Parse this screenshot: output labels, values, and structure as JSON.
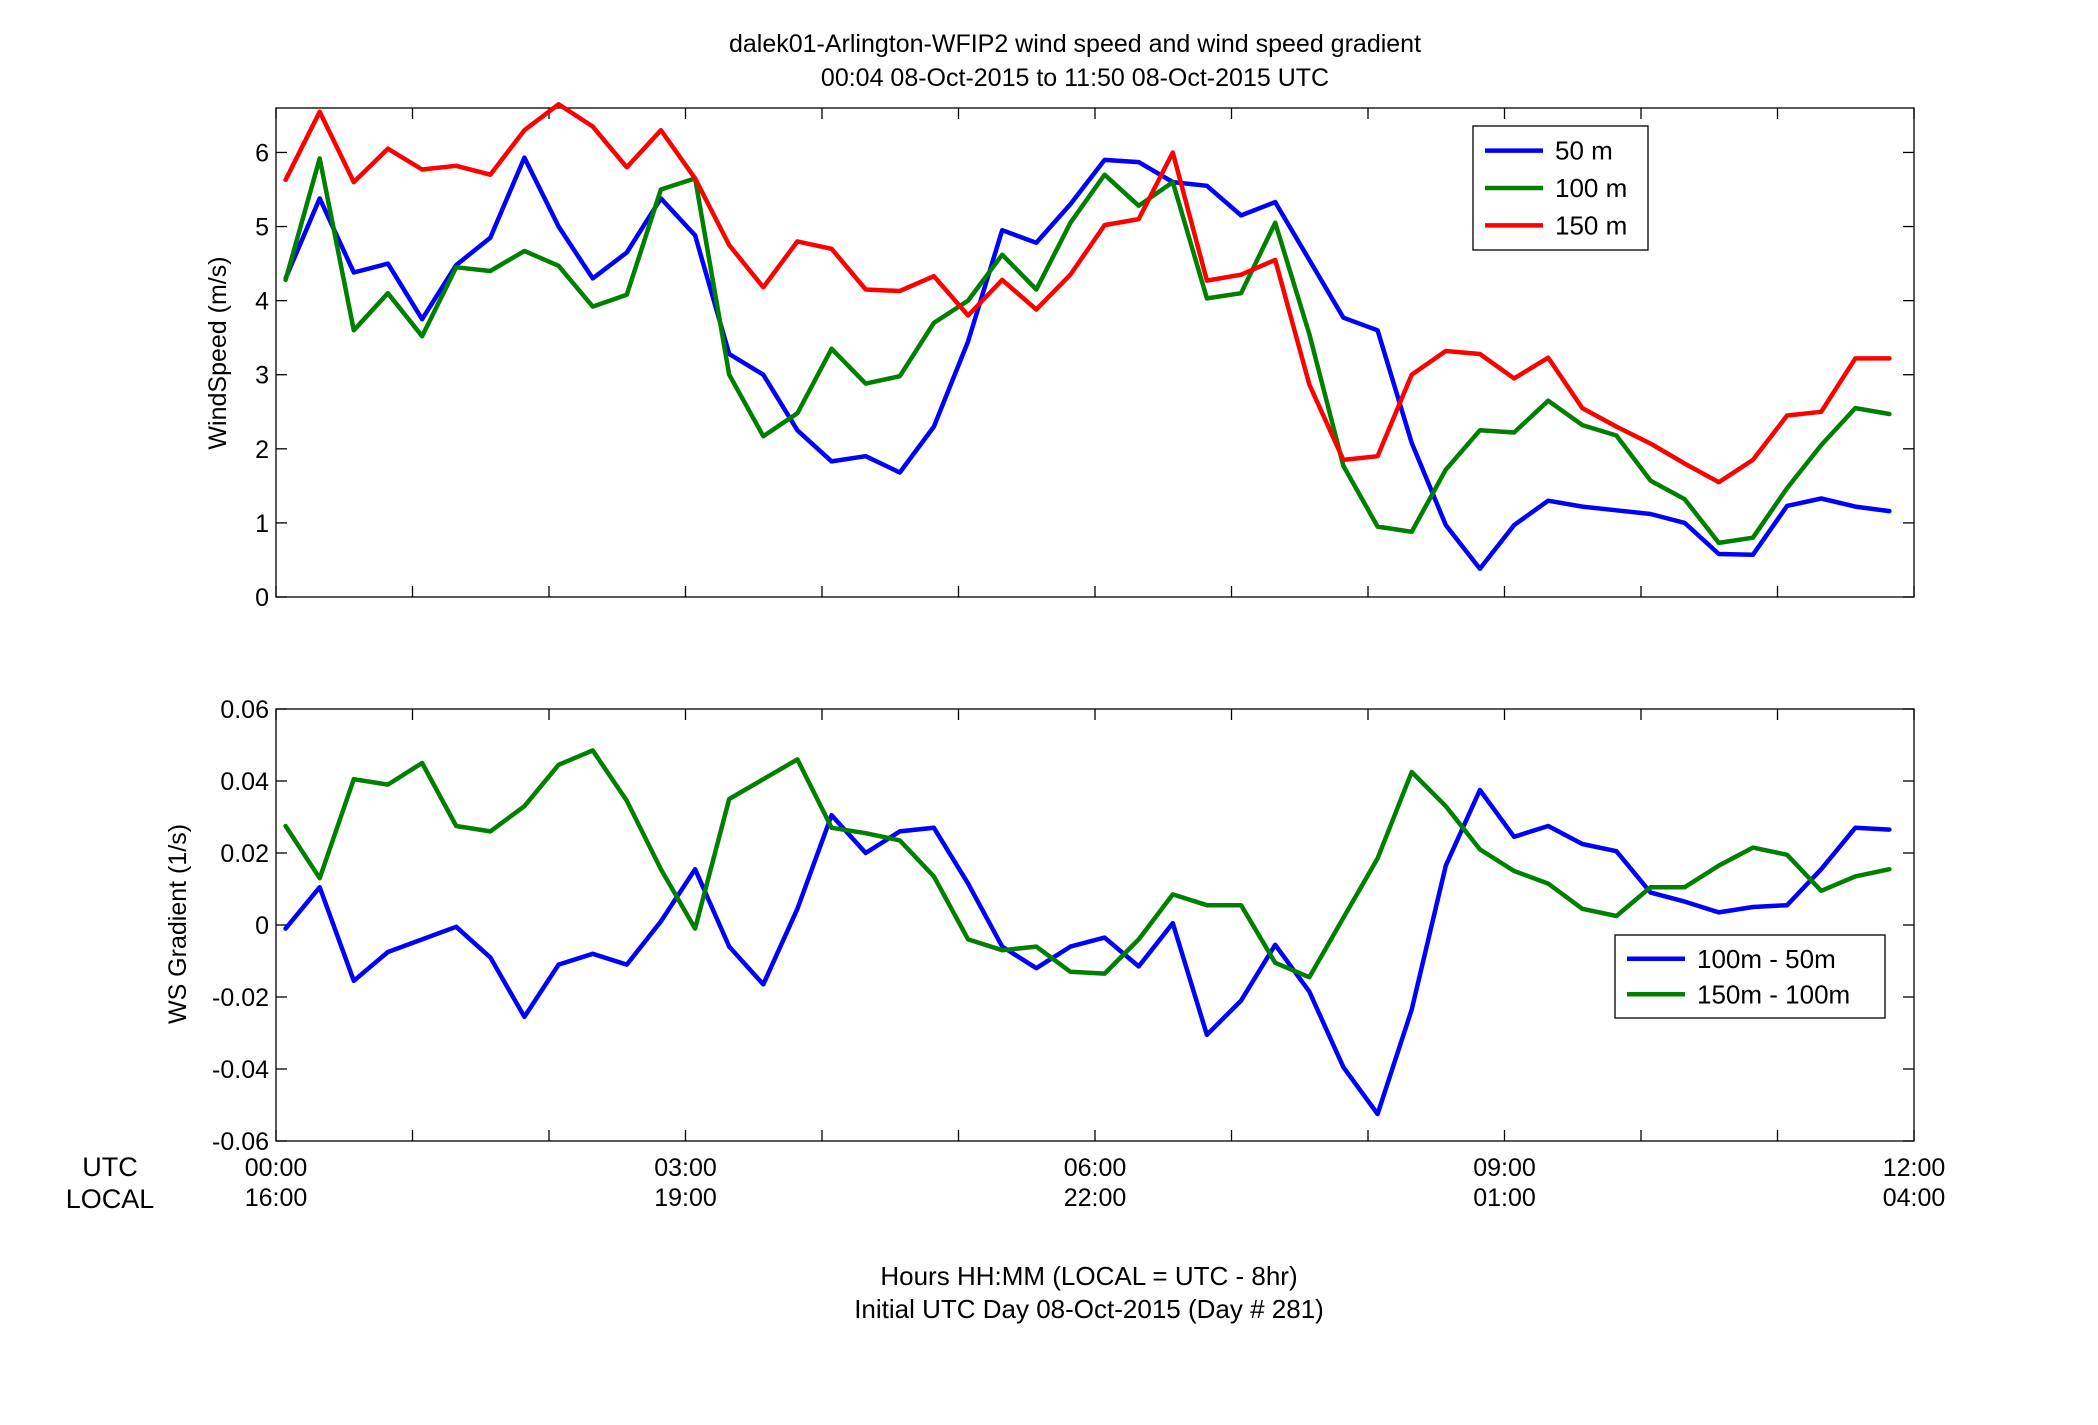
{
  "title_line1": "dalek01-Arlington-WFIP2  wind speed and wind speed gradient",
  "title_line2": "00:04 08-Oct-2015 to 11:50 08-Oct-2015  UTC",
  "footer_line1": "Hours HH:MM  (LOCAL = UTC - 8hr)",
  "footer_line2": "Initial UTC Day 08-Oct-2015 (Day # 281)",
  "x_row_labels": [
    "UTC",
    "LOCAL"
  ],
  "x_ticks": [
    {
      "utc": "00:00",
      "local": "16:00",
      "hour": 0
    },
    {
      "utc": "03:00",
      "local": "19:00",
      "hour": 3
    },
    {
      "utc": "06:00",
      "local": "22:00",
      "hour": 6
    },
    {
      "utc": "09:00",
      "local": "01:00",
      "hour": 9
    },
    {
      "utc": "12:00",
      "local": "04:00",
      "hour": 12
    }
  ],
  "colors": {
    "blue": "#0000ff",
    "green": "#008000",
    "red": "#ff0000"
  },
  "chart_data": [
    {
      "type": "line",
      "ylabel": "WindSpeed (m/s)",
      "ylim": [
        0,
        6.6
      ],
      "yticks": [
        0,
        1,
        2,
        3,
        4,
        5,
        6
      ],
      "xlim": [
        0,
        12
      ],
      "legend_position": "top-right",
      "x": [
        0.07,
        0.32,
        0.57,
        0.82,
        1.07,
        1.32,
        1.57,
        1.82,
        2.07,
        2.32,
        2.57,
        2.82,
        3.07,
        3.32,
        3.57,
        3.82,
        4.07,
        4.32,
        4.57,
        4.82,
        5.07,
        5.32,
        5.57,
        5.82,
        6.07,
        6.32,
        6.57,
        6.82,
        7.07,
        7.32,
        7.57,
        7.82,
        8.07,
        8.32,
        8.57,
        8.82,
        9.07,
        9.32,
        9.57,
        9.82,
        10.07,
        10.32,
        10.57,
        10.82,
        11.07,
        11.32,
        11.57,
        11.82
      ],
      "series": [
        {
          "name": "50 m",
          "color": "#0000ff",
          "values": [
            4.3,
            5.38,
            4.38,
            4.5,
            3.75,
            4.48,
            4.85,
            5.93,
            5.0,
            4.3,
            4.65,
            5.38,
            4.88,
            3.28,
            3.0,
            2.25,
            1.83,
            1.9,
            1.68,
            2.3,
            3.45,
            4.95,
            4.78,
            5.3,
            5.9,
            5.87,
            5.6,
            5.55,
            5.15,
            5.33,
            4.55,
            3.77,
            3.6,
            2.08,
            0.97,
            0.38,
            0.97,
            1.3,
            1.22,
            1.17,
            1.12,
            1.0,
            0.58,
            0.57,
            1.23,
            1.33,
            1.22,
            1.16
          ]
        },
        {
          "name": "100 m",
          "color": "#008000",
          "values": [
            4.28,
            5.92,
            3.6,
            4.1,
            3.52,
            4.45,
            4.4,
            4.67,
            4.47,
            3.92,
            4.08,
            5.5,
            5.65,
            3.0,
            2.17,
            2.48,
            3.35,
            2.88,
            2.98,
            3.7,
            4.0,
            4.62,
            4.15,
            5.05,
            5.7,
            5.28,
            5.6,
            4.03,
            4.1,
            5.05,
            3.55,
            1.77,
            0.95,
            0.88,
            1.72,
            2.25,
            2.22,
            2.65,
            2.32,
            2.18,
            1.57,
            1.32,
            0.73,
            0.8,
            1.47,
            2.05,
            2.55,
            2.47
          ]
        },
        {
          "name": "150 m",
          "color": "#ff0000",
          "values": [
            5.63,
            6.55,
            5.6,
            6.05,
            5.77,
            5.82,
            5.7,
            6.3,
            6.65,
            6.35,
            5.8,
            6.3,
            5.65,
            4.75,
            4.18,
            4.8,
            4.7,
            4.15,
            4.13,
            4.33,
            3.8,
            4.28,
            3.88,
            4.35,
            5.02,
            5.1,
            6.0,
            4.27,
            4.35,
            4.55,
            2.87,
            1.85,
            1.9,
            3.0,
            3.32,
            3.28,
            2.95,
            3.23,
            2.55,
            2.3,
            2.07,
            1.8,
            1.55,
            1.85,
            2.45,
            2.5,
            3.22,
            3.22
          ]
        }
      ]
    },
    {
      "type": "line",
      "ylabel": "WS Gradient (1/s)",
      "ylim": [
        -0.06,
        0.06
      ],
      "yticks": [
        -0.06,
        -0.04,
        -0.02,
        0,
        0.02,
        0.04,
        0.06
      ],
      "ytick_labels": [
        "-0.06",
        "-0.04",
        "-0.02",
        "0",
        "0.02",
        "0.04",
        "0.06"
      ],
      "xlim": [
        0,
        12
      ],
      "legend_position": "right",
      "x": [
        0.07,
        0.32,
        0.57,
        0.82,
        1.07,
        1.32,
        1.57,
        1.82,
        2.07,
        2.32,
        2.57,
        2.82,
        3.07,
        3.32,
        3.57,
        3.82,
        4.07,
        4.32,
        4.57,
        4.82,
        5.07,
        5.32,
        5.57,
        5.82,
        6.07,
        6.32,
        6.57,
        6.82,
        7.07,
        7.32,
        7.57,
        7.82,
        8.07,
        8.32,
        8.57,
        8.82,
        9.07,
        9.32,
        9.57,
        9.82,
        10.07,
        10.32,
        10.57,
        10.82,
        11.07,
        11.32,
        11.57,
        11.82
      ],
      "series": [
        {
          "name": "100m - 50m",
          "color": "#0000ff",
          "values": [
            -0.001,
            0.0105,
            -0.0155,
            -0.0075,
            -0.004,
            -0.0005,
            -0.009,
            -0.0255,
            -0.011,
            -0.008,
            -0.011,
            0.001,
            0.0155,
            -0.006,
            -0.0165,
            0.0045,
            0.0305,
            0.02,
            0.026,
            0.027,
            0.0115,
            -0.006,
            -0.012,
            -0.006,
            -0.0035,
            -0.0115,
            0.0005,
            -0.0305,
            -0.021,
            -0.0055,
            -0.0185,
            -0.0395,
            -0.0525,
            -0.0235,
            0.0165,
            0.0375,
            0.0245,
            0.0275,
            0.0225,
            0.0205,
            0.009,
            0.0065,
            0.0035,
            0.005,
            0.0055,
            0.0155,
            0.027,
            0.0265
          ]
        },
        {
          "name": "150m - 100m",
          "color": "#008000",
          "values": [
            0.0275,
            0.013,
            0.0405,
            0.039,
            0.045,
            0.0275,
            0.026,
            0.033,
            0.0445,
            0.0485,
            0.0345,
            0.0155,
            -0.001,
            0.035,
            0.0405,
            0.046,
            0.027,
            0.0255,
            0.0235,
            0.0135,
            -0.004,
            -0.007,
            -0.006,
            -0.013,
            -0.0135,
            -0.004,
            0.0085,
            0.0055,
            0.0055,
            -0.0105,
            -0.0145,
            0.002,
            0.0185,
            0.0425,
            0.033,
            0.021,
            0.015,
            0.0115,
            0.0045,
            0.0025,
            0.0105,
            0.0105,
            0.0165,
            0.0215,
            0.0195,
            0.0095,
            0.0135,
            0.0155
          ]
        }
      ]
    }
  ]
}
